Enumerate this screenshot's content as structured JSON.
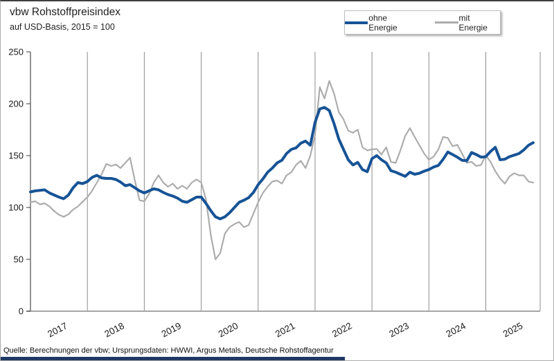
{
  "header": {
    "title": "vbw Rohstoffpreisindex",
    "subtitle": "auf USD-Basis, 2015 = 100"
  },
  "legend": {
    "items": [
      {
        "label": "ohne Energie",
        "color": "#175396"
      },
      {
        "label": "mit Energie",
        "color": "#ACACAC"
      }
    ]
  },
  "source": "Quelle: Berechnungen der vbw; Ursprungsdaten: HWWI, Argus Metals, Deutsche Rohstoffagentur",
  "accent_bar_color": "#1F3864",
  "chart_data": {
    "type": "line",
    "title": "vbw Rohstoffpreisindex",
    "subtitle": "auf USD-Basis, 2015 = 100",
    "x_unit": "monthly",
    "x_start": "2017-01",
    "x_end": "2025-11",
    "x_tick_labels": [
      "2017",
      "2018",
      "2019",
      "2020",
      "2021",
      "2022",
      "2023",
      "2024",
      "2025"
    ],
    "ylim": [
      0,
      250
    ],
    "y_ticks": [
      0,
      50,
      100,
      150,
      200,
      250
    ],
    "grid": "vertical-year-lines-only",
    "legend_position": "top-right",
    "series": [
      {
        "name": "ohne Energie",
        "color": "#175396",
        "line_width": 4,
        "values": [
          115,
          116,
          116.5,
          117,
          114,
          112,
          110,
          108.5,
          112,
          119,
          124,
          123,
          125,
          129,
          131,
          128.5,
          128,
          128,
          127,
          124.5,
          121,
          122,
          119,
          116,
          114,
          116,
          118,
          117,
          114.5,
          112.5,
          111,
          109,
          106,
          105,
          107.5,
          110,
          110,
          104,
          97,
          91,
          89,
          91,
          95,
          100,
          105,
          107,
          109.5,
          114.5,
          122,
          127.5,
          134,
          138,
          143,
          145.5,
          152,
          156,
          157.5,
          162,
          164,
          160,
          182,
          195,
          196.5,
          193.5,
          181,
          166,
          156,
          146,
          141,
          143.5,
          136.5,
          134.5,
          147,
          150,
          146,
          143,
          135.5,
          134,
          132,
          130,
          134,
          132,
          133,
          135,
          136.5,
          139,
          140.5,
          146.5,
          153.5,
          151,
          148.5,
          145.5,
          145,
          153,
          151,
          148.5,
          149,
          154,
          158,
          146,
          146.5,
          149,
          150.5,
          152,
          155.5,
          160,
          162.5
        ]
      },
      {
        "name": "mit Energie",
        "color": "#ACACAC",
        "line_width": 2.2,
        "values": [
          105,
          106,
          103,
          104,
          101,
          96.5,
          93,
          91,
          93.5,
          98,
          101,
          105.5,
          110,
          116,
          124,
          132,
          142,
          140,
          141.5,
          138,
          143,
          148,
          126,
          107,
          106,
          113,
          124,
          131,
          124,
          120,
          123,
          118,
          121,
          118,
          124,
          127,
          124,
          108,
          74,
          50,
          56,
          75,
          81,
          84,
          86,
          81,
          83,
          94,
          105,
          114,
          120,
          125,
          126,
          123,
          131,
          134,
          141,
          145,
          138,
          150,
          170,
          216,
          205,
          222,
          210,
          192,
          185,
          174,
          172,
          175,
          158,
          155,
          156,
          156.5,
          151,
          158,
          144,
          143,
          155,
          169,
          176.5,
          168,
          160,
          152,
          146,
          149,
          156,
          168,
          167,
          159,
          160.5,
          152,
          143,
          144,
          140,
          141,
          150,
          144,
          135,
          128,
          123,
          130,
          133,
          131,
          131,
          125,
          124
        ]
      }
    ]
  }
}
